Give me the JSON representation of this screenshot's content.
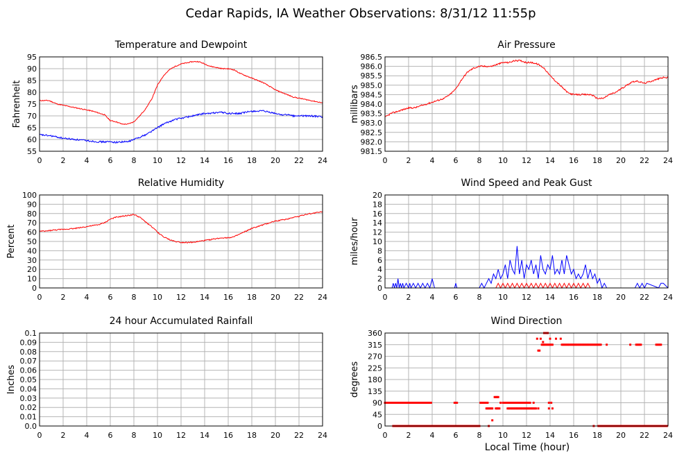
{
  "page": {
    "title": "Cedar Rapids, IA Weather Observations: 8/31/12 11:55p",
    "xlabel": "Local Time (hour)"
  },
  "colors": {
    "red": "#ff0000",
    "blue": "#0000ff",
    "grid": "#b4b4b4",
    "frame": "#000000"
  },
  "chart_data": [
    {
      "id": "temp",
      "type": "line",
      "title": "Temperature and Dewpoint",
      "ylabel": "Fahrenheit",
      "xlim": [
        0,
        24
      ],
      "ylim": [
        55,
        95
      ],
      "yticks": [
        "55",
        "60",
        "65",
        "70",
        "75",
        "80",
        "85",
        "90",
        "95"
      ],
      "xticks": [
        "0",
        "2",
        "4",
        "6",
        "8",
        "10",
        "12",
        "14",
        "16",
        "18",
        "20",
        "22",
        "24"
      ],
      "series": [
        {
          "color": "red",
          "noise": 0.2,
          "x": [
            0,
            0.8,
            1.5,
            2.5,
            3.5,
            4.5,
            5.5,
            6.0,
            6.5,
            7.0,
            7.5,
            8.0,
            8.5,
            9.0,
            9.5,
            10.0,
            10.5,
            11.0,
            11.5,
            12.0,
            12.5,
            13.0,
            13.5,
            14.0,
            14.5,
            15.0,
            15.5,
            16.0,
            16.5,
            17.0,
            17.5,
            18.0,
            18.5,
            19.0,
            19.5,
            20.0,
            20.5,
            21.0,
            21.5,
            22.0,
            22.5,
            23.0,
            23.5,
            24.0
          ],
          "y": [
            76.5,
            76.5,
            75,
            74,
            73,
            72,
            70.5,
            68,
            67.5,
            66.5,
            66.5,
            67.5,
            70,
            73,
            77,
            83,
            87,
            89.5,
            91,
            92,
            92.5,
            93,
            93,
            92,
            91,
            90.5,
            90,
            90,
            89.5,
            88,
            87,
            86,
            85,
            84,
            82.5,
            81,
            80,
            79,
            78,
            77.5,
            77,
            76.5,
            76,
            75.5
          ]
        },
        {
          "color": "blue",
          "noise": 0.35,
          "x": [
            0,
            1,
            2,
            3,
            4,
            5,
            6,
            6.5,
            7,
            7.5,
            8,
            8.5,
            9,
            9.5,
            10,
            10.5,
            11,
            11.5,
            12,
            12.5,
            13,
            13.5,
            14,
            14.5,
            15,
            15.5,
            16,
            16.5,
            17,
            17.5,
            18,
            18.5,
            19,
            19.5,
            20,
            20.5,
            21,
            21.5,
            22,
            22.5,
            23,
            23.5,
            24
          ],
          "y": [
            62,
            61.5,
            60.5,
            60,
            59.5,
            59,
            59,
            58.8,
            59,
            59,
            60,
            61,
            62,
            63.5,
            65,
            66.5,
            67.5,
            68.5,
            69,
            69.5,
            70,
            70.5,
            71,
            71,
            71.5,
            71.5,
            71,
            71,
            71,
            71.5,
            72,
            72,
            72,
            71.5,
            71,
            70.5,
            70.5,
            70,
            70,
            70,
            70,
            69.8,
            69.5
          ]
        }
      ]
    },
    {
      "id": "pressure",
      "type": "line",
      "title": "Air Pressure",
      "ylabel": "millibars",
      "xlim": [
        0,
        24
      ],
      "ylim": [
        981.5,
        986.5
      ],
      "yticks": [
        "981.5",
        "982.0",
        "982.5",
        "983.0",
        "983.5",
        "984.0",
        "984.5",
        "985.0",
        "985.5",
        "986.0",
        "986.5"
      ],
      "xticks": [
        "0",
        "2",
        "4",
        "6",
        "8",
        "10",
        "12",
        "14",
        "16",
        "18",
        "20",
        "22",
        "24"
      ],
      "series": [
        {
          "color": "red",
          "noise": 0.04,
          "x": [
            0,
            0.5,
            1,
            1.5,
            2,
            2.5,
            3,
            3.5,
            4,
            4.5,
            5,
            5.5,
            6,
            6.5,
            7,
            7.5,
            8,
            8.5,
            9,
            9.5,
            10,
            10.5,
            11,
            11.5,
            12,
            12.5,
            13,
            13.5,
            14,
            14.5,
            15,
            15.5,
            16,
            16.5,
            17,
            17.5,
            18,
            18.5,
            19,
            19.5,
            20,
            20.5,
            21,
            21.5,
            22,
            22.5,
            23,
            23.5,
            24
          ],
          "y": [
            983.3,
            983.5,
            983.6,
            983.7,
            983.8,
            983.8,
            983.9,
            984.0,
            984.1,
            984.2,
            984.3,
            984.5,
            984.8,
            985.3,
            985.7,
            985.9,
            986.0,
            986.0,
            986.0,
            986.1,
            986.2,
            986.2,
            986.3,
            986.3,
            986.2,
            986.2,
            986.1,
            985.9,
            985.5,
            985.2,
            984.9,
            984.6,
            984.5,
            984.5,
            984.5,
            984.5,
            984.3,
            984.3,
            984.5,
            984.6,
            984.8,
            985.0,
            985.2,
            985.2,
            985.1,
            985.2,
            985.3,
            985.4,
            985.4
          ]
        }
      ]
    },
    {
      "id": "humidity",
      "type": "line",
      "title": "Relative Humidity",
      "ylabel": "Percent",
      "xlim": [
        0,
        24
      ],
      "ylim": [
        0,
        100
      ],
      "yticks": [
        "0",
        "10",
        "20",
        "30",
        "40",
        "50",
        "60",
        "70",
        "80",
        "90",
        "100"
      ],
      "xticks": [
        "0",
        "2",
        "4",
        "6",
        "8",
        "10",
        "12",
        "14",
        "16",
        "18",
        "20",
        "22",
        "24"
      ],
      "series": [
        {
          "color": "red",
          "noise": 0.6,
          "x": [
            0,
            0.5,
            1,
            2,
            3,
            4,
            5,
            5.5,
            6,
            6.5,
            7,
            7.5,
            8,
            8.5,
            9,
            9.5,
            10,
            10.5,
            11,
            11.5,
            12,
            12.5,
            13,
            13.5,
            14,
            14.5,
            15,
            15.5,
            16,
            16.5,
            17,
            17.5,
            18,
            18.5,
            19,
            19.5,
            20,
            20.5,
            21,
            21.5,
            22,
            22.5,
            23,
            23.5,
            24
          ],
          "y": [
            61,
            61,
            62,
            63,
            64,
            66,
            68,
            70,
            74,
            76,
            77,
            78,
            79,
            76,
            71,
            66,
            60,
            55,
            52,
            50,
            49,
            49,
            49,
            50,
            51,
            52,
            53,
            54,
            54,
            55,
            58,
            61,
            64,
            66,
            68,
            70,
            72,
            73,
            74,
            76,
            77,
            79,
            80,
            81,
            82
          ]
        }
      ]
    },
    {
      "id": "wind",
      "type": "line",
      "title": "Wind Speed and Peak Gust",
      "ylabel": "miles/hour",
      "xlim": [
        0,
        24
      ],
      "ylim": [
        0,
        20
      ],
      "yticks": [
        "0",
        "2",
        "4",
        "6",
        "8",
        "10",
        "12",
        "14",
        "16",
        "18",
        "20"
      ],
      "xticks": [
        "0",
        "2",
        "4",
        "6",
        "8",
        "10",
        "12",
        "14",
        "16",
        "18",
        "20",
        "22",
        "24"
      ],
      "series": [
        {
          "color": "blue",
          "noise": 0,
          "x": [
            0,
            0.6,
            0.7,
            0.8,
            0.9,
            1.0,
            1.1,
            1.2,
            1.3,
            1.4,
            1.5,
            1.6,
            1.8,
            2.0,
            2.1,
            2.2,
            2.4,
            2.6,
            2.8,
            3.0,
            3.2,
            3.4,
            3.6,
            3.8,
            4.0,
            4.2,
            5.9,
            6.0,
            6.1,
            8.0,
            8.2,
            8.4,
            8.6,
            8.8,
            9.0,
            9.2,
            9.4,
            9.6,
            9.8,
            10.0,
            10.2,
            10.4,
            10.6,
            10.8,
            11.0,
            11.2,
            11.4,
            11.6,
            11.8,
            12.0,
            12.2,
            12.4,
            12.6,
            12.8,
            13.0,
            13.2,
            13.4,
            13.6,
            13.8,
            14.0,
            14.2,
            14.4,
            14.6,
            14.8,
            15.0,
            15.2,
            15.4,
            15.6,
            15.8,
            16.0,
            16.2,
            16.4,
            16.6,
            16.8,
            17.0,
            17.2,
            17.4,
            17.6,
            17.8,
            18.0,
            18.2,
            18.4,
            18.6,
            18.8,
            19.0,
            21.2,
            21.4,
            21.6,
            21.8,
            22.0,
            22.2,
            23.2,
            23.4,
            23.6,
            24.0
          ],
          "y": [
            0,
            0,
            1,
            0,
            1,
            0,
            2,
            0,
            1,
            0,
            1,
            0,
            1,
            0,
            1,
            0,
            1,
            0,
            1,
            0,
            1,
            0,
            1,
            0,
            2,
            0,
            0,
            1,
            0,
            0,
            1,
            0,
            1,
            2,
            1,
            3,
            2,
            4,
            2,
            3,
            5,
            2,
            6,
            4,
            3,
            9,
            3,
            6,
            2,
            5,
            4,
            6,
            3,
            5,
            2,
            7,
            4,
            3,
            5,
            4,
            7,
            3,
            4,
            3,
            6,
            3,
            7,
            5,
            3,
            4,
            2,
            3,
            2,
            3,
            5,
            2,
            4,
            2,
            3,
            1,
            2,
            0,
            1,
            0,
            0,
            0,
            1,
            0,
            1,
            0,
            1,
            0,
            1,
            1,
            0
          ]
        },
        {
          "color": "red",
          "noise": 0,
          "x": [
            0,
            9.4,
            9.6,
            9.8,
            10.0,
            10.2,
            10.4,
            10.6,
            10.8,
            11.0,
            11.2,
            11.4,
            11.6,
            11.8,
            12.0,
            12.2,
            12.4,
            12.6,
            12.8,
            13.0,
            13.2,
            13.4,
            13.6,
            13.8,
            14.0,
            14.2,
            14.4,
            14.6,
            14.8,
            15.0,
            15.2,
            15.4,
            15.6,
            15.8,
            16.0,
            16.2,
            16.4,
            16.6,
            16.8,
            17.0,
            17.2,
            17.4,
            17.6,
            24.0
          ],
          "y": [
            0,
            0,
            1,
            0,
            1,
            0,
            1,
            0,
            1,
            0,
            1,
            0,
            1,
            0,
            1,
            0,
            1,
            0,
            1,
            0,
            1,
            0,
            1,
            0,
            1,
            0,
            1,
            0,
            1,
            0,
            1,
            0,
            1,
            0,
            1,
            0,
            1,
            0,
            1,
            0,
            1,
            0,
            0,
            0
          ]
        }
      ]
    },
    {
      "id": "rain",
      "type": "line",
      "title": "24 hour Accumulated Rainfall",
      "ylabel": "Inches",
      "xlim": [
        0,
        24
      ],
      "ylim": [
        0,
        0.1
      ],
      "yticks": [
        "0.0",
        "0.01",
        "0.02",
        "0.03",
        "0.04",
        "0.05",
        "0.06",
        "0.07",
        "0.08",
        "0.09",
        "0.1"
      ],
      "xticks": [
        "0",
        "2",
        "4",
        "6",
        "8",
        "10",
        "12",
        "14",
        "16",
        "18",
        "20",
        "22",
        "24"
      ],
      "series": [
        {
          "color": "red",
          "noise": 0,
          "x": [
            0,
            24
          ],
          "y": [
            0,
            0
          ]
        }
      ]
    },
    {
      "id": "direction",
      "type": "scatter",
      "title": "Wind Direction",
      "ylabel": "degrees",
      "xlim": [
        0,
        24
      ],
      "ylim": [
        0,
        360
      ],
      "yticks": [
        "0",
        "45",
        "90",
        "135",
        "180",
        "225",
        "270",
        "315",
        "360"
      ],
      "xticks": [
        "0",
        "2",
        "4",
        "6",
        "8",
        "10",
        "12",
        "14",
        "16",
        "18",
        "20",
        "22",
        "24"
      ],
      "runs": [
        {
          "x0": 0.0,
          "x1": 3.9,
          "y": 90,
          "step": 0.1
        },
        {
          "x0": 0.7,
          "x1": 8.0,
          "y": 0,
          "step": 0.1
        },
        {
          "x0": 5.9,
          "x1": 6.1,
          "y": 90,
          "step": 0.1
        },
        {
          "x0": 8.1,
          "x1": 8.7,
          "y": 90,
          "step": 0.1
        },
        {
          "x0": 8.6,
          "x1": 9.1,
          "y": 68,
          "step": 0.1
        },
        {
          "x0": 9.3,
          "x1": 9.6,
          "y": 112,
          "step": 0.1
        },
        {
          "x0": 9.4,
          "x1": 9.7,
          "y": 68,
          "step": 0.1
        },
        {
          "x0": 10.0,
          "x1": 12.3,
          "y": 90,
          "step": 0.1
        },
        {
          "x0": 10.4,
          "x1": 12.8,
          "y": 68,
          "step": 0.1
        },
        {
          "x0": 13.5,
          "x1": 13.8,
          "y": 360,
          "step": 0.1
        },
        {
          "x0": 13.3,
          "x1": 14.2,
          "y": 315,
          "step": 0.1
        },
        {
          "x0": 15.0,
          "x1": 18.3,
          "y": 315,
          "step": 0.1
        },
        {
          "x0": 18.1,
          "x1": 23.9,
          "y": 0,
          "step": 0.1
        },
        {
          "x0": 21.3,
          "x1": 21.7,
          "y": 315,
          "step": 0.1
        },
        {
          "x0": 23.0,
          "x1": 23.4,
          "y": 315,
          "step": 0.1
        }
      ],
      "points": [
        [
          13.0,
          292
        ],
        [
          13.1,
          292
        ],
        [
          12.9,
          338
        ],
        [
          13.2,
          338
        ],
        [
          13.4,
          325
        ],
        [
          14.0,
          338
        ],
        [
          14.5,
          338
        ],
        [
          14.9,
          338
        ],
        [
          13.9,
          90
        ],
        [
          14.1,
          90
        ],
        [
          13.9,
          68
        ],
        [
          14.2,
          68
        ],
        [
          9.1,
          22
        ],
        [
          18.8,
          315
        ],
        [
          20.8,
          315
        ],
        [
          17.7,
          0
        ],
        [
          8.8,
          0
        ],
        [
          9.8,
          90
        ],
        [
          13.0,
          68
        ],
        [
          12.6,
          90
        ]
      ]
    }
  ]
}
